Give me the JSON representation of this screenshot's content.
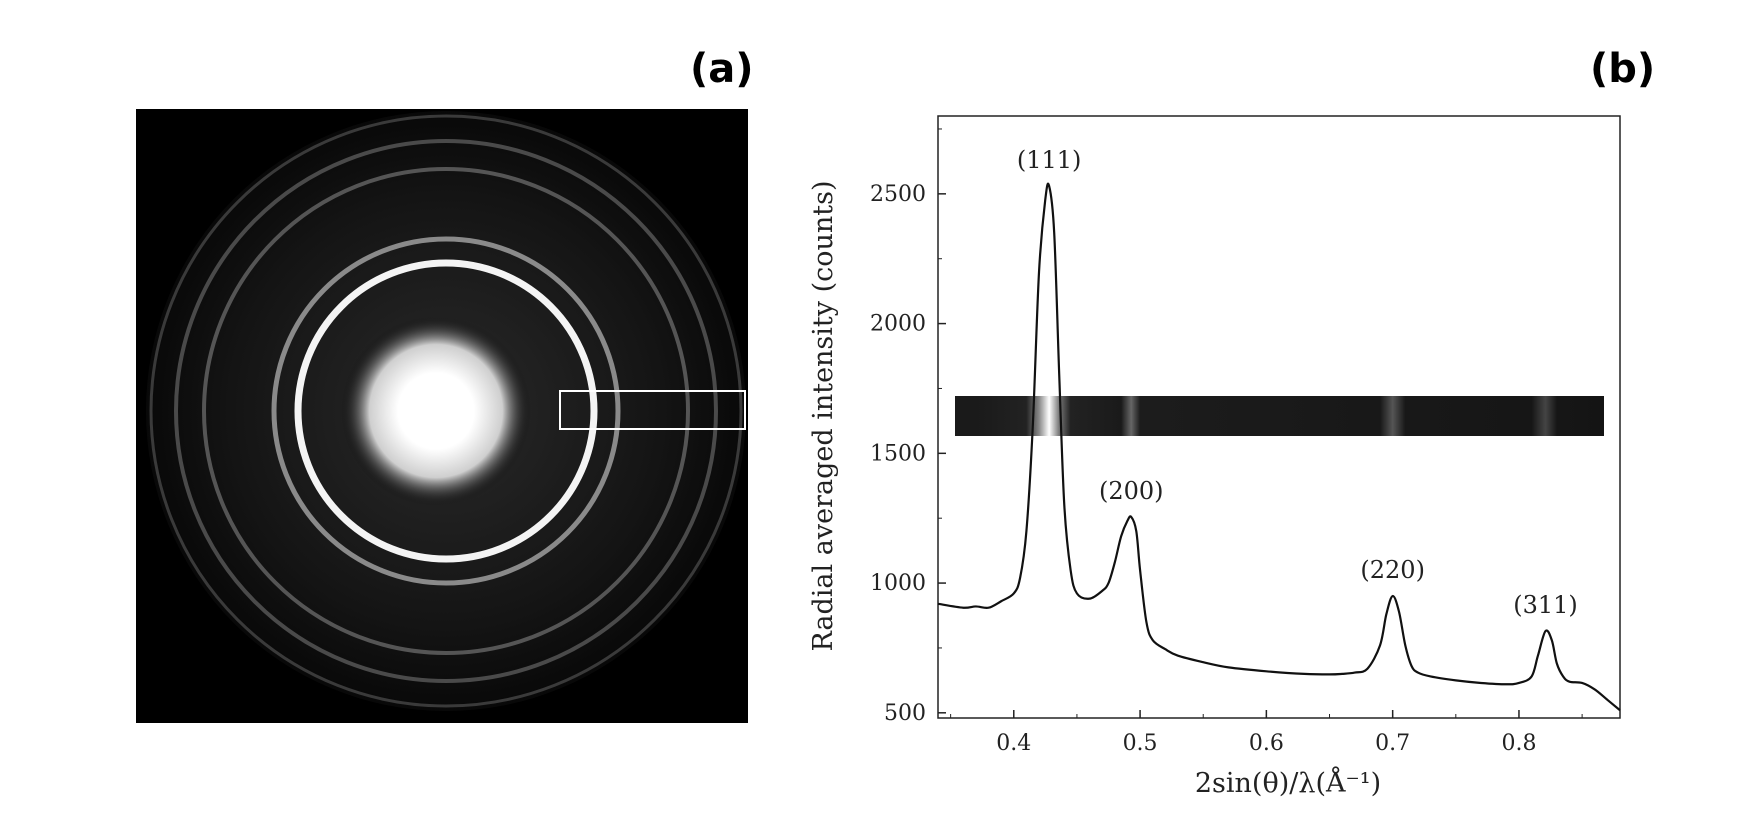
{
  "panels": {
    "a_label": "(a)",
    "b_label": "(b)"
  },
  "chart_data": {
    "type": "line",
    "xlabel": "2sin(θ)/λ(Å⁻¹)",
    "ylabel": "Radial averaged intensity (counts)",
    "xlim": [
      0.34,
      0.88
    ],
    "ylim": [
      480,
      2800
    ],
    "xticks": [
      "0.4",
      "0.5",
      "0.6",
      "0.7",
      "0.8"
    ],
    "yticks": [
      "500",
      "1000",
      "1500",
      "2000",
      "2500"
    ],
    "grid": false,
    "legend": "none",
    "annotations": [
      {
        "text": "(111)",
        "x": 0.428,
        "y": 2530
      },
      {
        "text": "(200)",
        "x": 0.493,
        "y": 1255
      },
      {
        "text": "(220)",
        "x": 0.7,
        "y": 950
      },
      {
        "text": "(311)",
        "x": 0.821,
        "y": 815
      }
    ],
    "series": [
      {
        "x": [
          0.34,
          0.36,
          0.37,
          0.38,
          0.39,
          0.4,
          0.405,
          0.41,
          0.415,
          0.42,
          0.425,
          0.428,
          0.432,
          0.436,
          0.44,
          0.445,
          0.45,
          0.46,
          0.47,
          0.475,
          0.48,
          0.485,
          0.49,
          0.493,
          0.497,
          0.5,
          0.505,
          0.51,
          0.52,
          0.53,
          0.55,
          0.57,
          0.6,
          0.63,
          0.65,
          0.66,
          0.67,
          0.68,
          0.69,
          0.695,
          0.7,
          0.705,
          0.71,
          0.715,
          0.72,
          0.73,
          0.75,
          0.77,
          0.79,
          0.8,
          0.81,
          0.815,
          0.821,
          0.826,
          0.83,
          0.835,
          0.84,
          0.85,
          0.86,
          0.87,
          0.88
        ],
        "y": [
          920,
          905,
          910,
          905,
          930,
          960,
          1020,
          1200,
          1600,
          2200,
          2480,
          2530,
          2350,
          1800,
          1300,
          1050,
          960,
          940,
          970,
          1000,
          1080,
          1180,
          1240,
          1255,
          1200,
          1050,
          850,
          780,
          745,
          720,
          695,
          675,
          660,
          650,
          648,
          650,
          655,
          670,
          760,
          880,
          950,
          890,
          760,
          680,
          655,
          640,
          625,
          615,
          610,
          615,
          640,
          720,
          815,
          780,
          690,
          640,
          620,
          615,
          590,
          550,
          510
        ]
      }
    ]
  }
}
